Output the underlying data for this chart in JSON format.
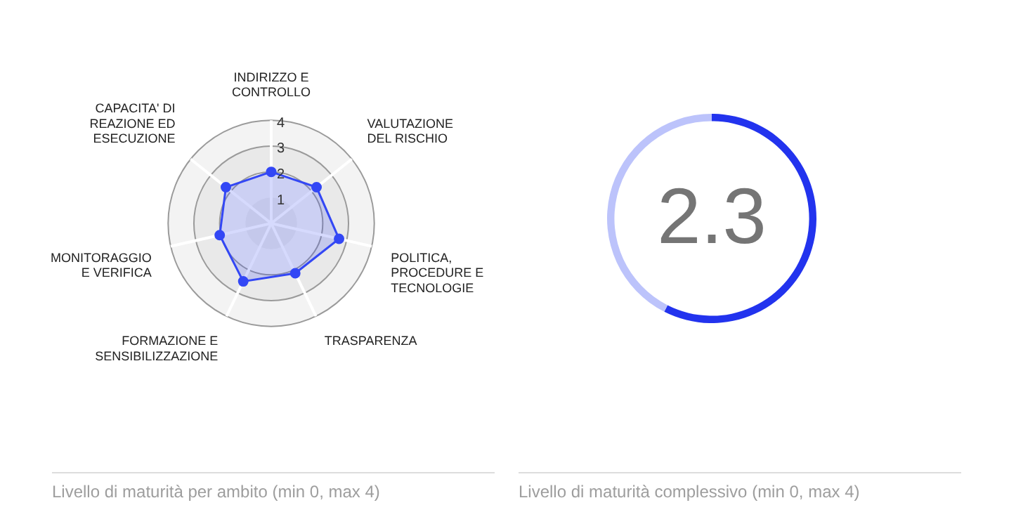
{
  "chart_data": [
    {
      "type": "radar",
      "title": "Livello di maturità per ambito (min 0, max 4)",
      "categories": [
        "INDIRIZZO E CONTROLLO",
        "VALUTAZIONE DEL RISCHIO",
        "POLITICA, PROCEDURE E TECNOLOGIE",
        "TRASPARENZA",
        "FORMAZIONE E SENSIBILIZZAZIONE",
        "MONITORAGGIO E VERIFICA",
        "CAPACITA' DI REAZIONE ED ESECUZIONE"
      ],
      "series": [
        {
          "color": "#3347f5",
          "values": [
            2.0,
            2.25,
            2.7,
            2.15,
            2.5,
            2.05,
            2.25
          ]
        }
      ],
      "ylim": [
        0,
        4
      ],
      "yticks": [
        1,
        2,
        3,
        4
      ],
      "marker": "circle",
      "legend": false
    },
    {
      "type": "donut",
      "title": "Livello di maturità complessivo (min 0, max 4)",
      "categories": [
        null,
        null
      ],
      "values": [
        57.5,
        42.5
      ],
      "colors": [
        "#2233ee",
        "#bcc3fb"
      ],
      "annotations": [
        "2.3"
      ],
      "legend": false
    }
  ]
}
